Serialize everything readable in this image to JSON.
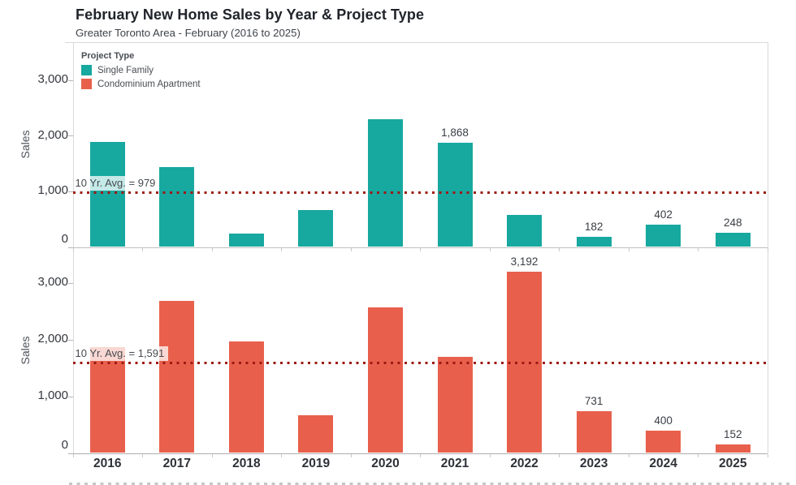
{
  "header": {
    "title_bold": "February",
    "title_rest": " New Home Sales by Year & Project Type",
    "subtitle": "Greater Toronto Area - February (2016 to 2025)"
  },
  "legend": {
    "title": "Project Type",
    "items": [
      {
        "label": "Single Family",
        "color": "#17A8A0"
      },
      {
        "label": "Condominium Apartment",
        "color": "#E8604C"
      }
    ]
  },
  "colors": {
    "single_family": "#17A8A0",
    "condominium_apartment": "#E8604C",
    "reference_line": "#9C1B13",
    "pane_border": "#DADADA",
    "axis_line": "#B5B5B5",
    "tick_text": "#33373d",
    "year_text": "#2e3238"
  },
  "chart_data": {
    "type": "bar",
    "title": "February New Home Sales by Year & Project Type",
    "subtitle": "Greater Toronto Area - February (2016 to 2025)",
    "categories": [
      "2016",
      "2017",
      "2018",
      "2019",
      "2020",
      "2021",
      "2022",
      "2023",
      "2024",
      "2025"
    ],
    "xlabel": "",
    "ylabel": "Sales",
    "ytick_values": [
      0,
      1000,
      2000,
      3000
    ],
    "ytick_labels": [
      "0",
      "1,000",
      "2,000",
      "3,000"
    ],
    "ylim": [
      0,
      3650
    ],
    "grid": false,
    "legend_position": "top-left-inside",
    "layout": "two stacked panes, one per series, shared x-axis",
    "series": [
      {
        "name": "Single Family",
        "color": "#17A8A0",
        "values": [
          1890,
          1430,
          240,
          660,
          2300,
          1868,
          570,
          182,
          402,
          248
        ],
        "value_labels": [
          "",
          "",
          "",
          "",
          "",
          "1,868",
          "",
          "182",
          "402",
          "248"
        ],
        "reference_line": {
          "value": 979,
          "label": "10 Yr. Avg. = 979"
        }
      },
      {
        "name": "Condominium Apartment",
        "color": "#E8604C",
        "values": [
          1865,
          2680,
          1960,
          670,
          2565,
          1695,
          3192,
          731,
          400,
          152
        ],
        "value_labels": [
          "",
          "",
          "",
          "",
          "",
          "",
          "3,192",
          "731",
          "400",
          "152"
        ],
        "reference_line": {
          "value": 1591,
          "label": "10 Yr. Avg. = 1,591"
        }
      }
    ]
  }
}
